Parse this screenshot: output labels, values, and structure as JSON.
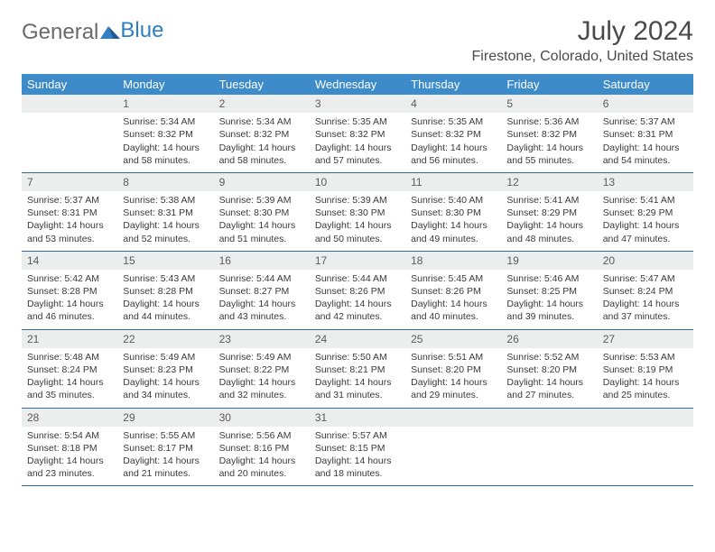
{
  "brand": {
    "part1": "General",
    "part2": "Blue"
  },
  "title": "July 2024",
  "location": "Firestone, Colorado, United States",
  "day_headers": [
    "Sunday",
    "Monday",
    "Tuesday",
    "Wednesday",
    "Thursday",
    "Friday",
    "Saturday"
  ],
  "colors": {
    "header_bg": "#3d8bc8",
    "header_text": "#ffffff",
    "daynum_bg": "#eceded",
    "week_border": "#2f6aa0",
    "body_text": "#3a3a3a",
    "title_text": "#4a4a4a"
  },
  "weeks": [
    [
      null,
      {
        "n": "1",
        "sunrise": "Sunrise: 5:34 AM",
        "sunset": "Sunset: 8:32 PM",
        "daylight1": "Daylight: 14 hours",
        "daylight2": "and 58 minutes."
      },
      {
        "n": "2",
        "sunrise": "Sunrise: 5:34 AM",
        "sunset": "Sunset: 8:32 PM",
        "daylight1": "Daylight: 14 hours",
        "daylight2": "and 58 minutes."
      },
      {
        "n": "3",
        "sunrise": "Sunrise: 5:35 AM",
        "sunset": "Sunset: 8:32 PM",
        "daylight1": "Daylight: 14 hours",
        "daylight2": "and 57 minutes."
      },
      {
        "n": "4",
        "sunrise": "Sunrise: 5:35 AM",
        "sunset": "Sunset: 8:32 PM",
        "daylight1": "Daylight: 14 hours",
        "daylight2": "and 56 minutes."
      },
      {
        "n": "5",
        "sunrise": "Sunrise: 5:36 AM",
        "sunset": "Sunset: 8:32 PM",
        "daylight1": "Daylight: 14 hours",
        "daylight2": "and 55 minutes."
      },
      {
        "n": "6",
        "sunrise": "Sunrise: 5:37 AM",
        "sunset": "Sunset: 8:31 PM",
        "daylight1": "Daylight: 14 hours",
        "daylight2": "and 54 minutes."
      }
    ],
    [
      {
        "n": "7",
        "sunrise": "Sunrise: 5:37 AM",
        "sunset": "Sunset: 8:31 PM",
        "daylight1": "Daylight: 14 hours",
        "daylight2": "and 53 minutes."
      },
      {
        "n": "8",
        "sunrise": "Sunrise: 5:38 AM",
        "sunset": "Sunset: 8:31 PM",
        "daylight1": "Daylight: 14 hours",
        "daylight2": "and 52 minutes."
      },
      {
        "n": "9",
        "sunrise": "Sunrise: 5:39 AM",
        "sunset": "Sunset: 8:30 PM",
        "daylight1": "Daylight: 14 hours",
        "daylight2": "and 51 minutes."
      },
      {
        "n": "10",
        "sunrise": "Sunrise: 5:39 AM",
        "sunset": "Sunset: 8:30 PM",
        "daylight1": "Daylight: 14 hours",
        "daylight2": "and 50 minutes."
      },
      {
        "n": "11",
        "sunrise": "Sunrise: 5:40 AM",
        "sunset": "Sunset: 8:30 PM",
        "daylight1": "Daylight: 14 hours",
        "daylight2": "and 49 minutes."
      },
      {
        "n": "12",
        "sunrise": "Sunrise: 5:41 AM",
        "sunset": "Sunset: 8:29 PM",
        "daylight1": "Daylight: 14 hours",
        "daylight2": "and 48 minutes."
      },
      {
        "n": "13",
        "sunrise": "Sunrise: 5:41 AM",
        "sunset": "Sunset: 8:29 PM",
        "daylight1": "Daylight: 14 hours",
        "daylight2": "and 47 minutes."
      }
    ],
    [
      {
        "n": "14",
        "sunrise": "Sunrise: 5:42 AM",
        "sunset": "Sunset: 8:28 PM",
        "daylight1": "Daylight: 14 hours",
        "daylight2": "and 46 minutes."
      },
      {
        "n": "15",
        "sunrise": "Sunrise: 5:43 AM",
        "sunset": "Sunset: 8:28 PM",
        "daylight1": "Daylight: 14 hours",
        "daylight2": "and 44 minutes."
      },
      {
        "n": "16",
        "sunrise": "Sunrise: 5:44 AM",
        "sunset": "Sunset: 8:27 PM",
        "daylight1": "Daylight: 14 hours",
        "daylight2": "and 43 minutes."
      },
      {
        "n": "17",
        "sunrise": "Sunrise: 5:44 AM",
        "sunset": "Sunset: 8:26 PM",
        "daylight1": "Daylight: 14 hours",
        "daylight2": "and 42 minutes."
      },
      {
        "n": "18",
        "sunrise": "Sunrise: 5:45 AM",
        "sunset": "Sunset: 8:26 PM",
        "daylight1": "Daylight: 14 hours",
        "daylight2": "and 40 minutes."
      },
      {
        "n": "19",
        "sunrise": "Sunrise: 5:46 AM",
        "sunset": "Sunset: 8:25 PM",
        "daylight1": "Daylight: 14 hours",
        "daylight2": "and 39 minutes."
      },
      {
        "n": "20",
        "sunrise": "Sunrise: 5:47 AM",
        "sunset": "Sunset: 8:24 PM",
        "daylight1": "Daylight: 14 hours",
        "daylight2": "and 37 minutes."
      }
    ],
    [
      {
        "n": "21",
        "sunrise": "Sunrise: 5:48 AM",
        "sunset": "Sunset: 8:24 PM",
        "daylight1": "Daylight: 14 hours",
        "daylight2": "and 35 minutes."
      },
      {
        "n": "22",
        "sunrise": "Sunrise: 5:49 AM",
        "sunset": "Sunset: 8:23 PM",
        "daylight1": "Daylight: 14 hours",
        "daylight2": "and 34 minutes."
      },
      {
        "n": "23",
        "sunrise": "Sunrise: 5:49 AM",
        "sunset": "Sunset: 8:22 PM",
        "daylight1": "Daylight: 14 hours",
        "daylight2": "and 32 minutes."
      },
      {
        "n": "24",
        "sunrise": "Sunrise: 5:50 AM",
        "sunset": "Sunset: 8:21 PM",
        "daylight1": "Daylight: 14 hours",
        "daylight2": "and 31 minutes."
      },
      {
        "n": "25",
        "sunrise": "Sunrise: 5:51 AM",
        "sunset": "Sunset: 8:20 PM",
        "daylight1": "Daylight: 14 hours",
        "daylight2": "and 29 minutes."
      },
      {
        "n": "26",
        "sunrise": "Sunrise: 5:52 AM",
        "sunset": "Sunset: 8:20 PM",
        "daylight1": "Daylight: 14 hours",
        "daylight2": "and 27 minutes."
      },
      {
        "n": "27",
        "sunrise": "Sunrise: 5:53 AM",
        "sunset": "Sunset: 8:19 PM",
        "daylight1": "Daylight: 14 hours",
        "daylight2": "and 25 minutes."
      }
    ],
    [
      {
        "n": "28",
        "sunrise": "Sunrise: 5:54 AM",
        "sunset": "Sunset: 8:18 PM",
        "daylight1": "Daylight: 14 hours",
        "daylight2": "and 23 minutes."
      },
      {
        "n": "29",
        "sunrise": "Sunrise: 5:55 AM",
        "sunset": "Sunset: 8:17 PM",
        "daylight1": "Daylight: 14 hours",
        "daylight2": "and 21 minutes."
      },
      {
        "n": "30",
        "sunrise": "Sunrise: 5:56 AM",
        "sunset": "Sunset: 8:16 PM",
        "daylight1": "Daylight: 14 hours",
        "daylight2": "and 20 minutes."
      },
      {
        "n": "31",
        "sunrise": "Sunrise: 5:57 AM",
        "sunset": "Sunset: 8:15 PM",
        "daylight1": "Daylight: 14 hours",
        "daylight2": "and 18 minutes."
      },
      null,
      null,
      null
    ]
  ]
}
